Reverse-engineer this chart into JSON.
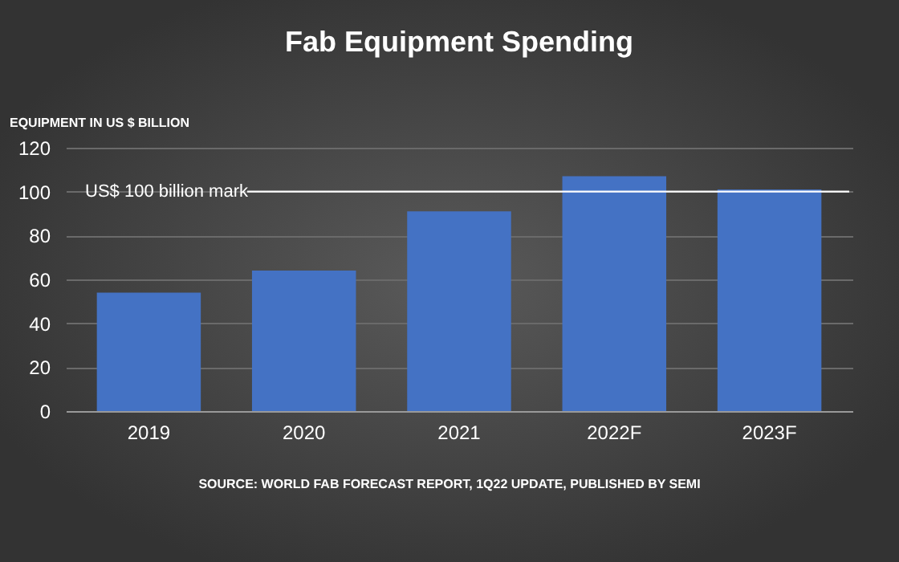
{
  "chart_data": {
    "type": "bar",
    "title": "Fab Equipment Spending",
    "ylabel": "EQUIPMENT IN US $ BILLION",
    "categories": [
      "2019",
      "2020",
      "2021",
      "2022F",
      "2023F"
    ],
    "values": [
      54,
      64,
      91,
      107,
      101
    ],
    "color": "#4472c4",
    "ylim": [
      0,
      120
    ],
    "yticks": [
      0,
      20,
      40,
      60,
      80,
      100,
      120
    ],
    "grid": "y",
    "ref_lines": [
      {
        "axis": "y",
        "value": 100,
        "label": "US$ 100 billion mark",
        "color": "#ffffff"
      }
    ],
    "annotations": [
      "SOURCE: WORLD FAB FORECAST REPORT, 1Q22 UPDATE, PUBLISHED BY SEMI"
    ]
  }
}
